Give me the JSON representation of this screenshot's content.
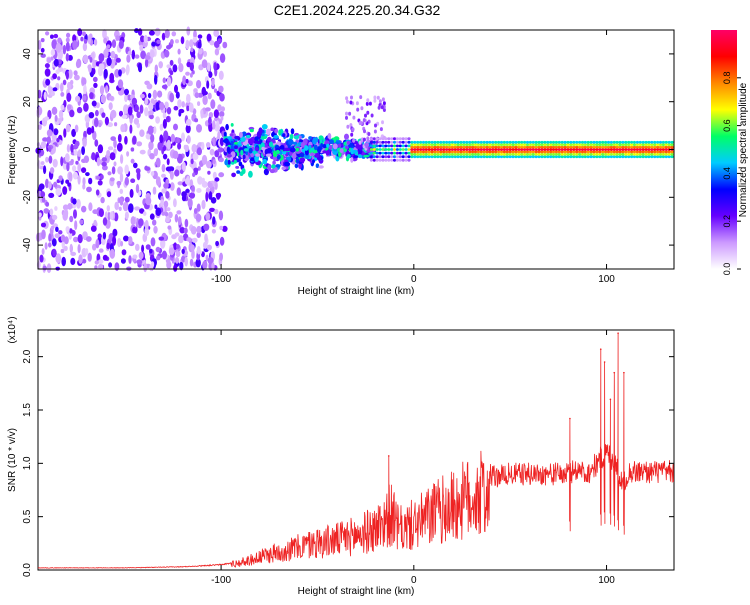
{
  "title": "C2E1.2024.225.20.34.G32",
  "chart_data": [
    {
      "type": "heatmap",
      "xlabel": "Height of straight line (km)",
      "ylabel": "Frequency (Hz)",
      "xlim": [
        -195,
        135
      ],
      "ylim": [
        -50,
        50
      ],
      "xticks": [
        -100,
        0,
        100
      ],
      "yticks": [
        -40,
        -20,
        0,
        20,
        40
      ],
      "grid": false,
      "colorbar": {
        "label": "Normalized spectral amplitude",
        "range": [
          0,
          1
        ],
        "ticks": [
          0.0,
          0.2,
          0.4,
          0.6,
          0.8
        ],
        "colormap": [
          "#ffffff",
          "#cc99ff",
          "#6600ff",
          "#0000ff",
          "#00ccff",
          "#00ff66",
          "#ffff00",
          "#ff8800",
          "#ff0000",
          "#ff0066"
        ]
      },
      "description_of_field": {
        "noise_region_km": [
          -195,
          -98
        ],
        "noise_amplitude_approx": 0.15,
        "transition_region_km": [
          -98,
          -20
        ],
        "transition_amplitude_approx": 0.45,
        "signal_band_freq_hz": 0,
        "signal_band_from_km": -2,
        "signal_band_to_km": 135,
        "signal_band_amplitude_approx": 0.95,
        "signal_band_halfwidth_hz": 2
      }
    },
    {
      "type": "line",
      "xlabel": "Height of straight line (km)",
      "ylabel": "SNR (10 * v/v)",
      "yscale_label": "(x10⁴)",
      "xlim": [
        -195,
        135
      ],
      "ylim": [
        0,
        2.25
      ],
      "xticks": [
        -100,
        0,
        100
      ],
      "yticks": [
        0.0,
        0.5,
        1.0,
        1.5,
        2.0
      ],
      "color": "#ee2222",
      "series": [
        {
          "x": [
            -195,
            -150,
            -120,
            -100,
            -90,
            -80,
            -70,
            -60,
            -50,
            -40,
            -30,
            -20,
            -15,
            -12,
            -8,
            -5,
            0,
            5,
            10,
            20,
            30,
            40,
            50,
            60,
            70,
            80,
            85,
            90,
            95,
            100,
            105,
            108,
            112,
            120,
            135
          ],
          "values": [
            0.02,
            0.02,
            0.03,
            0.05,
            0.08,
            0.14,
            0.2,
            0.25,
            0.3,
            0.33,
            0.38,
            0.45,
            0.55,
            0.62,
            0.45,
            0.45,
            0.5,
            0.55,
            0.62,
            0.7,
            0.8,
            0.87,
            0.9,
            0.9,
            0.9,
            0.9,
            0.95,
            0.9,
            1.0,
            1.1,
            1.0,
            0.8,
            0.92,
            0.92,
            0.92
          ]
        }
      ],
      "spikes": [
        {
          "x": -13,
          "value": 1.07
        },
        {
          "x": 81,
          "value": 1.42
        },
        {
          "x": 97,
          "value": 2.07
        },
        {
          "x": 99,
          "value": 1.95
        },
        {
          "x": 102,
          "value": 1.6
        },
        {
          "x": 104,
          "value": 1.85
        },
        {
          "x": 106,
          "value": 2.22
        },
        {
          "x": 109,
          "value": 1.85
        }
      ]
    }
  ]
}
